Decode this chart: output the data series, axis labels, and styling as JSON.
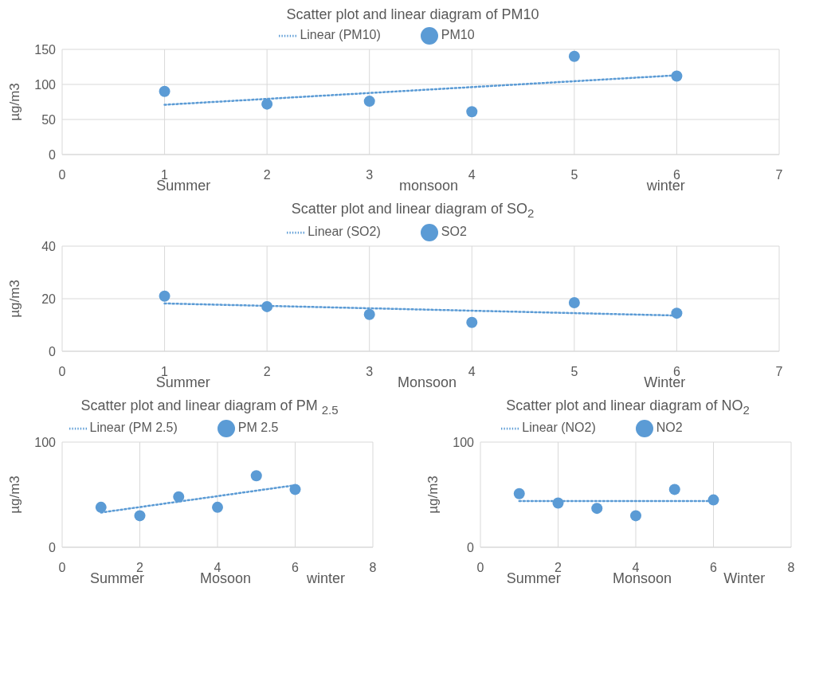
{
  "chart_data": [
    {
      "type": "scatter",
      "title": "Scatter plot and linear diagram of PM10",
      "ylabel": "µg/m3",
      "annotations": [
        "Summer",
        "monsoon",
        "winter"
      ],
      "xlim": [
        0,
        7
      ],
      "xticks": [
        0,
        1,
        2,
        3,
        4,
        5,
        6,
        7
      ],
      "ylim": [
        0,
        150
      ],
      "yticks": [
        0,
        50,
        100,
        150
      ],
      "grid": true,
      "legend": "top",
      "marker": "circle",
      "series": [
        {
          "name": "PM10",
          "color": "#5b9bd5",
          "x": [
            1,
            2,
            3,
            4,
            5,
            6
          ],
          "values": [
            90,
            72,
            76,
            61,
            140,
            112
          ]
        },
        {
          "name": "Linear (PM10)",
          "type": "line",
          "color": "#5b9bd5",
          "line_style": "dotted",
          "marker": "none",
          "x": [
            1,
            6
          ],
          "values": [
            71,
            113
          ]
        }
      ]
    },
    {
      "type": "scatter",
      "title": "Scatter  plot and linear diagram of SO$_{2}$",
      "ylabel": "µg/m3",
      "annotations": [
        "Summer",
        "Monsoon",
        "Winter"
      ],
      "xlim": [
        0,
        7
      ],
      "xticks": [
        0,
        1,
        2,
        3,
        4,
        5,
        6,
        7
      ],
      "ylim": [
        0,
        40
      ],
      "yticks": [
        0,
        20,
        40
      ],
      "grid": true,
      "legend": "top",
      "marker": "circle",
      "series": [
        {
          "name": "SO2",
          "color": "#5b9bd5",
          "x": [
            1,
            2,
            3,
            4,
            5,
            6
          ],
          "values": [
            21,
            17,
            14,
            11,
            18.5,
            14.5
          ]
        },
        {
          "name": "Linear (SO2)",
          "type": "line",
          "color": "#5b9bd5",
          "line_style": "dotted",
          "marker": "none",
          "x": [
            1,
            6
          ],
          "values": [
            18.2,
            13.6
          ]
        }
      ]
    },
    {
      "type": "scatter",
      "title": "Scatter plot and linear diagram of PM $_{2.5}$",
      "ylabel": "µg/m3",
      "annotations": [
        "Summer",
        "Mosoon",
        "winter"
      ],
      "xlim": [
        0,
        8
      ],
      "xticks": [
        0,
        2,
        4,
        6,
        8
      ],
      "ylim": [
        0,
        100
      ],
      "yticks": [
        0,
        100
      ],
      "grid": true,
      "legend": "top",
      "marker": "circle",
      "series": [
        {
          "name": "PM 2.5",
          "color": "#5b9bd5",
          "x": [
            1,
            2,
            3,
            4,
            5,
            6
          ],
          "values": [
            38,
            30,
            48,
            38,
            68,
            55
          ]
        },
        {
          "name": "Linear (PM 2.5)",
          "type": "line",
          "color": "#5b9bd5",
          "line_style": "dotted",
          "marker": "none",
          "x": [
            1,
            6
          ],
          "values": [
            33,
            59
          ]
        }
      ]
    },
    {
      "type": "scatter",
      "title": "Scatter plot and linear diagram of NO$_{2}$",
      "ylabel": "µg/m3",
      "annotations": [
        "Summer",
        "Monsoon",
        "Winter"
      ],
      "xlim": [
        0,
        8
      ],
      "xticks": [
        0,
        2,
        4,
        6,
        8
      ],
      "ylim": [
        0,
        100
      ],
      "yticks": [
        0,
        100
      ],
      "grid": true,
      "legend": "top",
      "marker": "circle",
      "series": [
        {
          "name": "NO2",
          "color": "#5b9bd5",
          "x": [
            1,
            2,
            3,
            4,
            5,
            6
          ],
          "values": [
            51,
            42,
            37,
            30,
            55,
            45
          ]
        },
        {
          "name": "Linear (NO2)",
          "type": "line",
          "color": "#5b9bd5",
          "line_style": "dotted",
          "marker": "none",
          "x": [
            1,
            6
          ],
          "values": [
            44,
            44
          ]
        }
      ]
    }
  ]
}
